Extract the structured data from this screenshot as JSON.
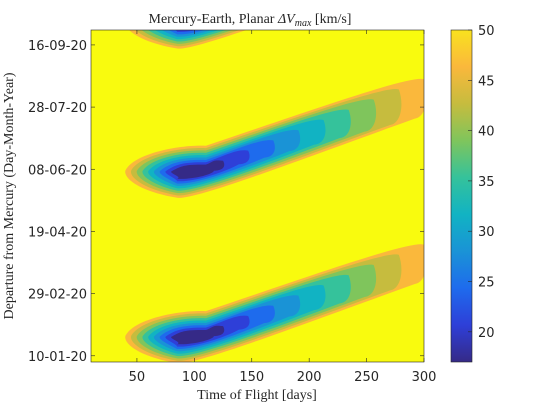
{
  "chart_data": {
    "type": "heatmap",
    "title_prefix": "Mercury-Earth, Planar ",
    "title_symbol": "ΔV",
    "title_subscript": "max",
    "title_suffix": " [km/s]",
    "xlabel": "Time of Flight [days]",
    "ylabel": "Departure from Mercury (Day-Month-Year)",
    "x_ticks": [
      "50",
      "100",
      "150",
      "200",
      "250",
      "300"
    ],
    "x_tick_values": [
      50,
      100,
      150,
      200,
      250,
      300
    ],
    "xlim": [
      10,
      300
    ],
    "y_ticks": [
      "10-01-20",
      "29-02-20",
      "19-04-20",
      "08-06-20",
      "28-07-20",
      "16-09-20"
    ],
    "y_tick_values": [
      0,
      50,
      100,
      150,
      200,
      250
    ],
    "ylim": [
      -5,
      262
    ],
    "colorbar": {
      "ticks": [
        "20",
        "25",
        "30",
        "35",
        "40",
        "45",
        "50"
      ],
      "tick_values": [
        20,
        25,
        30,
        35,
        40,
        45,
        50
      ],
      "range": [
        17,
        50
      ],
      "colors": [
        "#352a87",
        "#2e3fd8",
        "#1e6bed",
        "#1a93d6",
        "#11b3c3",
        "#35c29b",
        "#7fc55c",
        "#c6bc3e",
        "#fab83c",
        "#f9e21e"
      ]
    },
    "valleys": [
      {
        "departure_days": 15,
        "tof_days": 110,
        "min_dv": 18
      },
      {
        "departure_days": 148,
        "tof_days": 110,
        "min_dv": 18
      },
      {
        "departure_days": 268,
        "tof_days": 110,
        "min_dv": 18
      }
    ]
  }
}
